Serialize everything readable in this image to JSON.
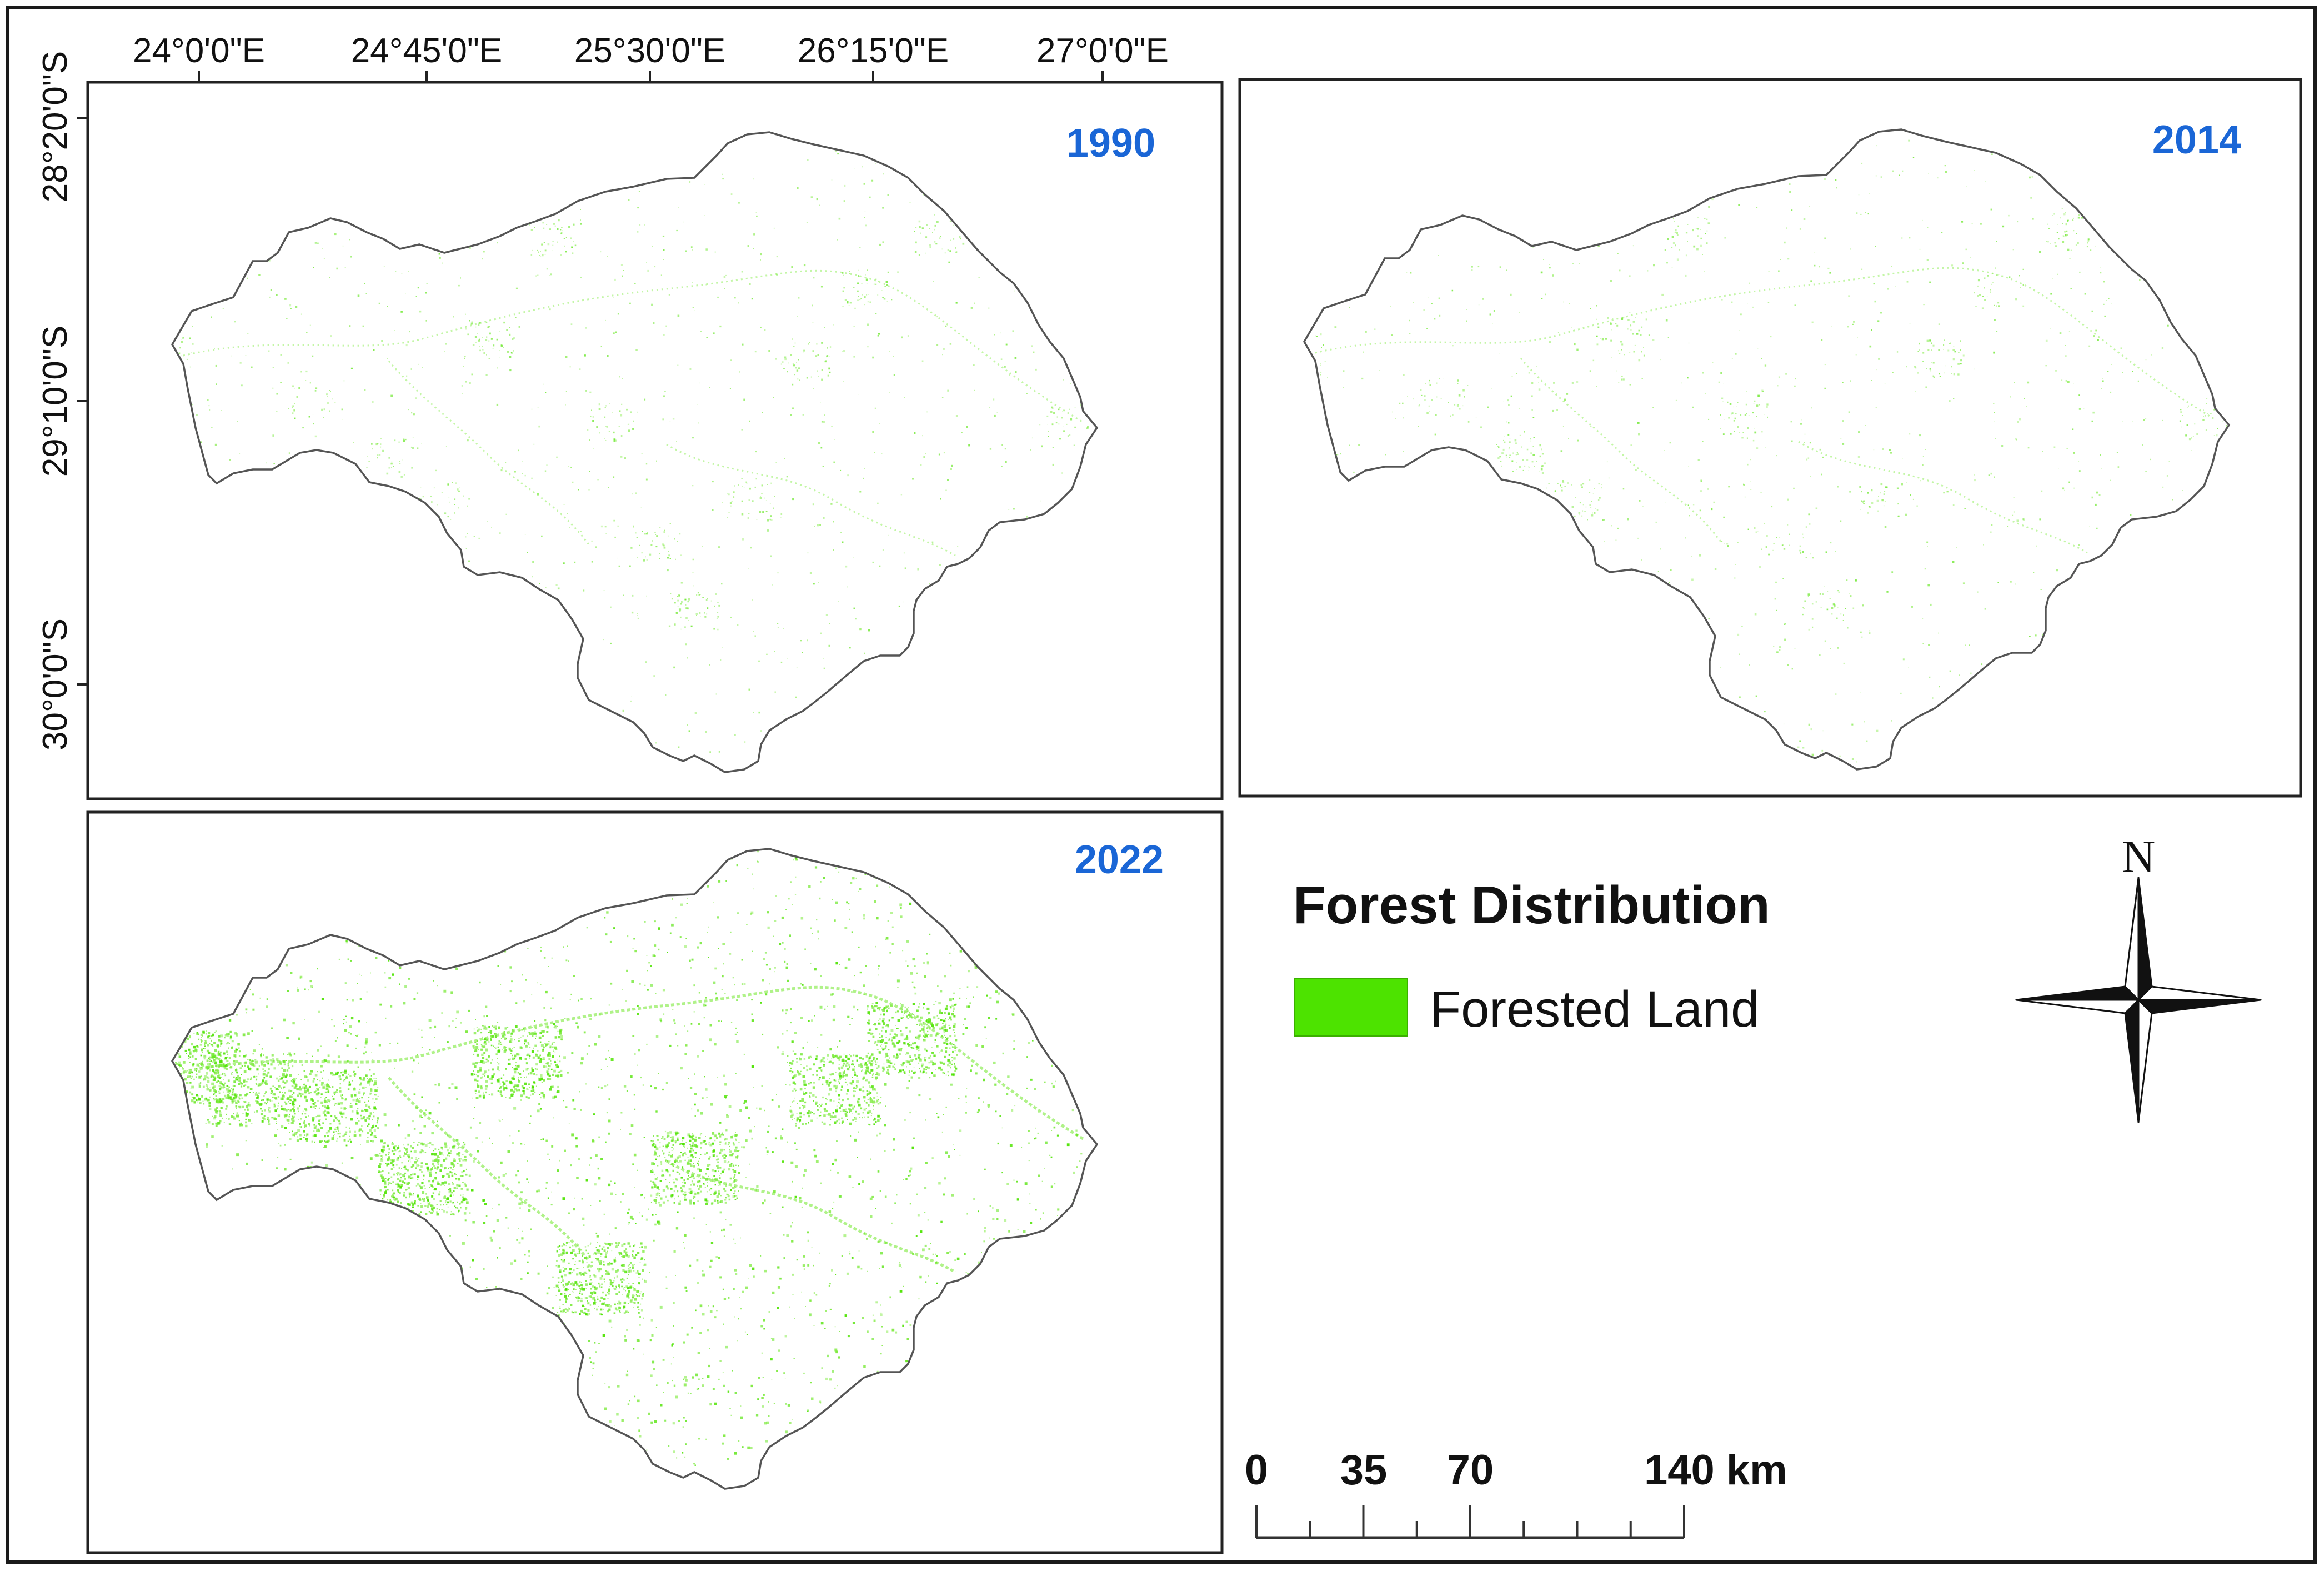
{
  "coordinates": {
    "longitude_labels": [
      "24°0'0\"E",
      "24°45'0\"E",
      "25°30'0\"E",
      "26°15'0\"E",
      "27°0'0\"E"
    ],
    "latitude_labels": [
      "28°20'0\"S",
      "29°10'0\"S",
      "30°0'0\"S"
    ]
  },
  "panels": [
    {
      "year": "1990",
      "forest_cover": "sparse"
    },
    {
      "year": "2014",
      "forest_cover": "sparse"
    },
    {
      "year": "2022",
      "forest_cover": "dense"
    }
  ],
  "legend": {
    "title": "Forest Distribution",
    "items": [
      {
        "label": "Forested Land",
        "color": "#4de300"
      }
    ]
  },
  "scale_bar": {
    "labels": [
      "0",
      "35",
      "70",
      "140 km"
    ],
    "values_km": [
      0,
      35,
      70,
      140
    ]
  },
  "north_arrow": {
    "label": "N"
  },
  "colors": {
    "year_label": "#1a66d6",
    "forest": "#4de300",
    "forest_speckle": "#7bea3a",
    "boundary": "#555555",
    "frame": "#1a1a1a"
  }
}
